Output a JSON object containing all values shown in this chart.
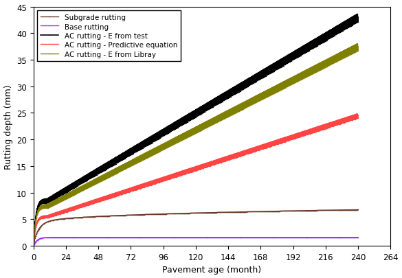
{
  "title": "",
  "xlabel": "Pavement age (month)",
  "ylabel": "Rutting depth (mm)",
  "xlim": [
    0,
    264
  ],
  "ylim": [
    0,
    45
  ],
  "xticks": [
    0,
    24,
    48,
    72,
    96,
    120,
    144,
    168,
    192,
    216,
    240,
    264
  ],
  "yticks": [
    0,
    5,
    10,
    15,
    20,
    25,
    30,
    35,
    40,
    45
  ],
  "series": {
    "subgrade": {
      "label": "Subgrade rutting",
      "color": "#6B3A2A",
      "linewidth": 1.0,
      "initial": 3.5,
      "end_value": 6.8,
      "init_speed": 0.25
    },
    "base": {
      "label": "Base rutting",
      "color": "#9B30FF",
      "linewidth": 1.0,
      "initial": 0.7,
      "end_value": 1.6,
      "init_speed": 0.4
    },
    "ac_test": {
      "label": "AC rutting - E from test",
      "color": "#000000",
      "linewidth": 1.2,
      "initial": 8.5,
      "end_value": 43.0,
      "init_speed": 0.6
    },
    "ac_pred": {
      "label": "AC rutting - Predictive equation",
      "color": "#FF4444",
      "linewidth": 1.0,
      "initial": 5.5,
      "end_value": 24.5,
      "init_speed": 0.6
    },
    "ac_lib": {
      "label": "AC rutting - E from Libray",
      "color": "#808000",
      "linewidth": 1.0,
      "initial": 7.5,
      "end_value": 37.5,
      "init_speed": 0.6
    }
  },
  "background_color": "#ffffff",
  "legend_fontsize": 7.5,
  "axis_fontsize": 9,
  "tick_fontsize": 8.5
}
